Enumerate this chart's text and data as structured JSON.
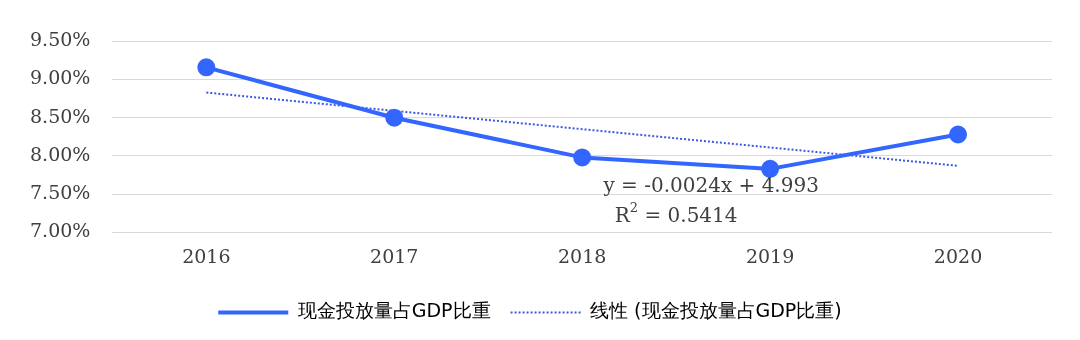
{
  "chart_data": {
    "type": "line",
    "categories": [
      "2016",
      "2017",
      "2018",
      "2019",
      "2020"
    ],
    "series": [
      {
        "name": "现金投放量占GDP比重",
        "color": "#3366ff",
        "values": [
          9.16,
          8.5,
          7.98,
          7.83,
          8.28
        ],
        "marker": "circle",
        "line_style": "solid"
      },
      {
        "name": "线性 (现金投放量占GDP比重)",
        "color": "#3a5be0",
        "values": [
          8.83,
          8.59,
          8.35,
          8.11,
          7.87
        ],
        "marker": "none",
        "line_style": "dotted"
      }
    ],
    "ylim": [
      7,
      9.5
    ],
    "yticks": [
      {
        "value": 7,
        "label": "7.00%"
      },
      {
        "value": 7.5,
        "label": "7.50%"
      },
      {
        "value": 8,
        "label": "8.00%"
      },
      {
        "value": 8.5,
        "label": "8.50%"
      },
      {
        "value": 9,
        "label": "9.00%"
      },
      {
        "value": 9.5,
        "label": "9.50%"
      }
    ],
    "grid": "y",
    "legend": "bottom",
    "annotations": [
      "y = -0.0024x + 4.993",
      "R$^{2}$ = 0.5414"
    ]
  }
}
